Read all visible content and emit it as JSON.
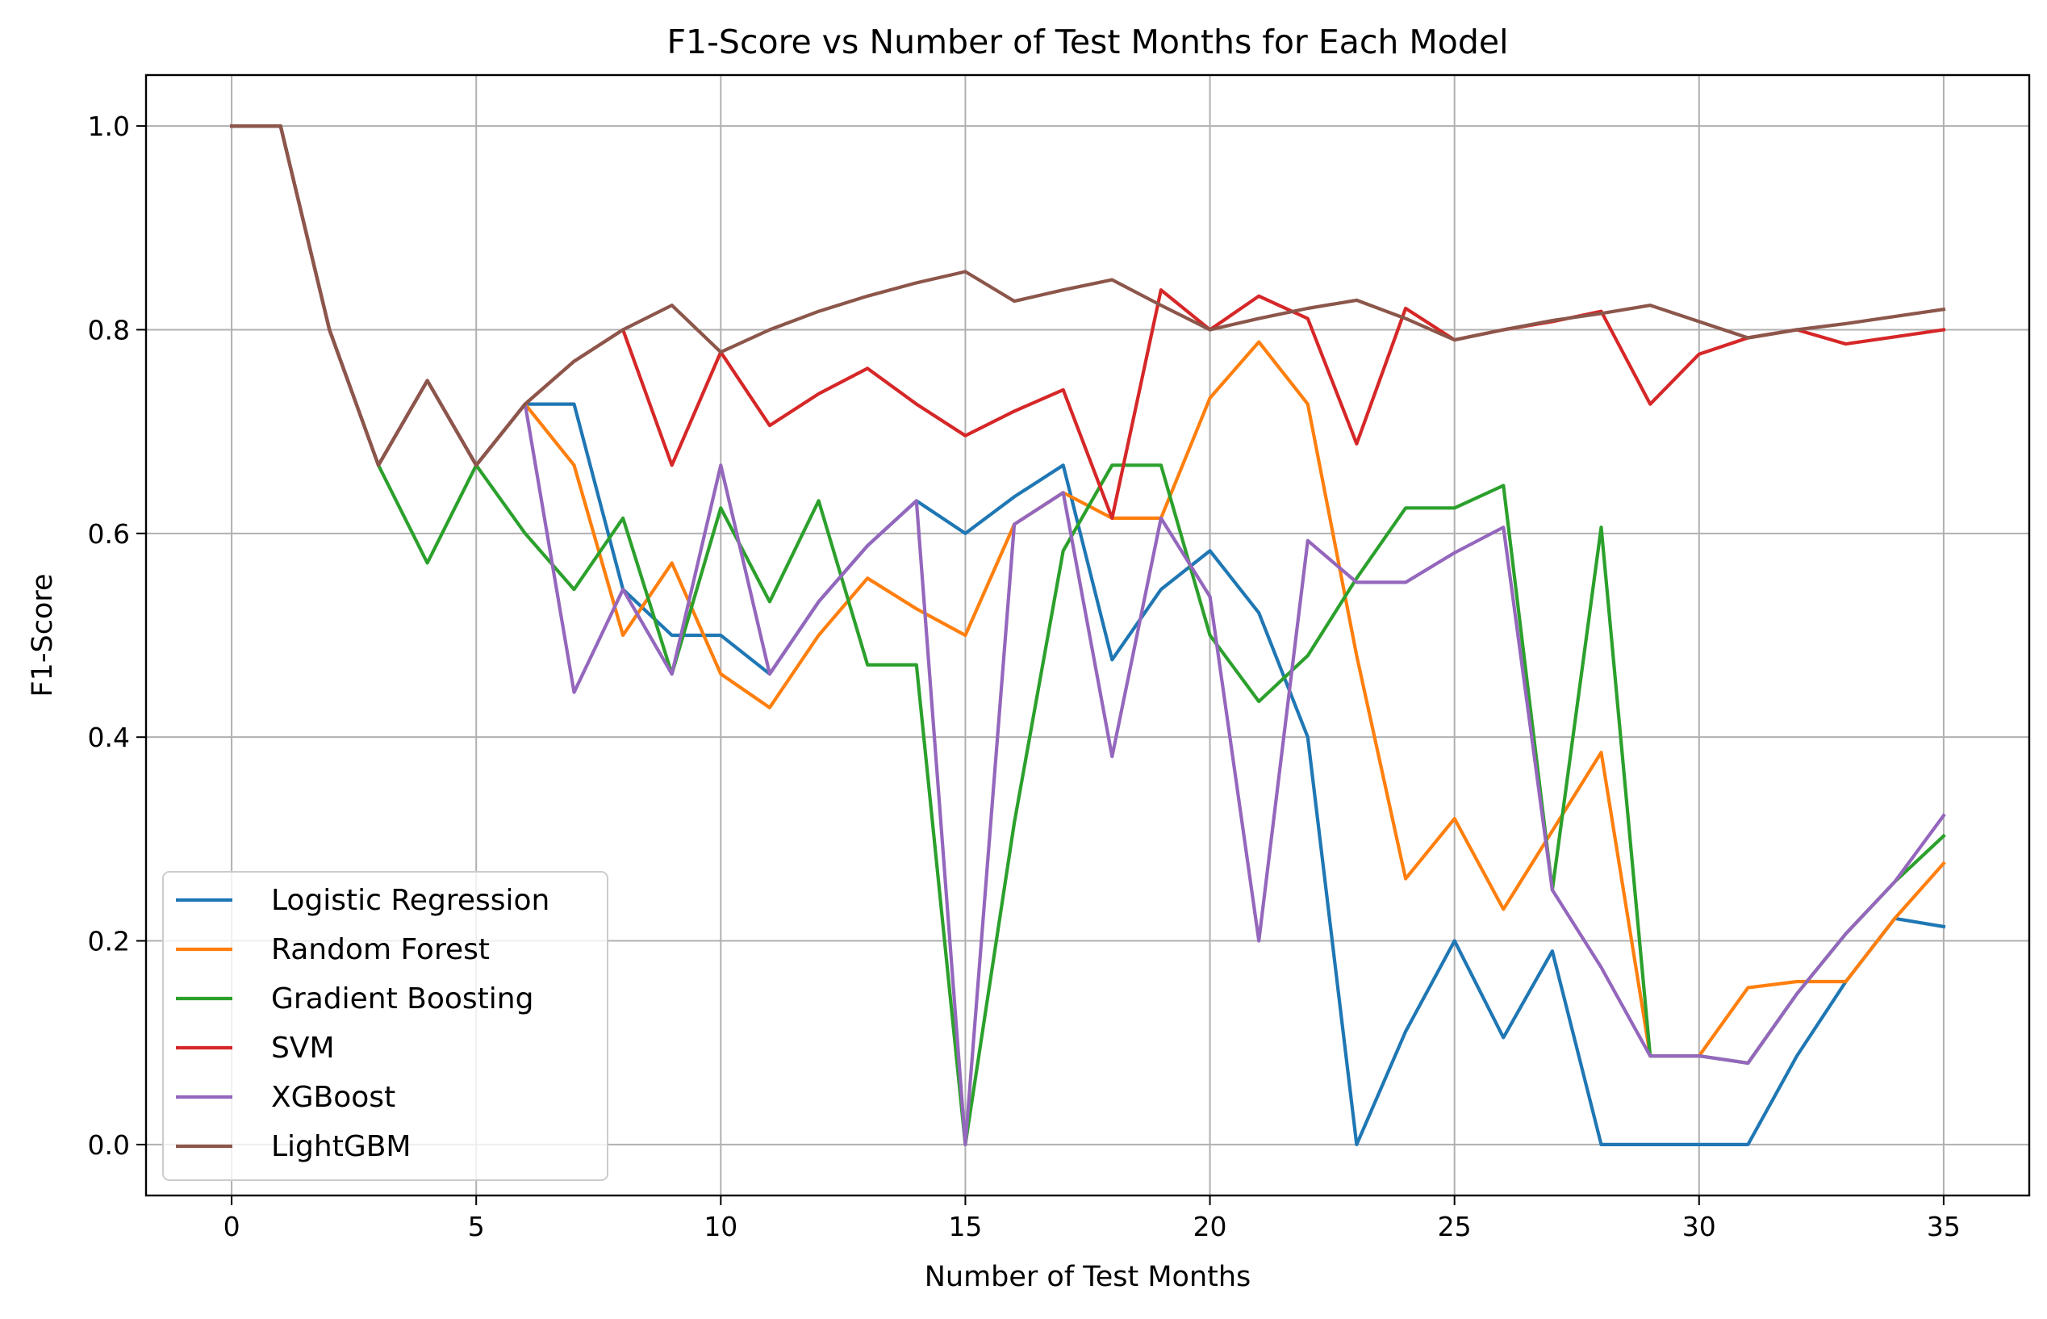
{
  "chart_data": {
    "type": "line",
    "title": "F1-Score vs Number of Test Months for Each Model",
    "xlabel": "Number of Test Months",
    "ylabel": "F1-Score",
    "xlim": [
      -1.75,
      36.75
    ],
    "ylim": [
      -0.05,
      1.05
    ],
    "xticks": [
      0,
      5,
      10,
      15,
      20,
      25,
      30,
      35
    ],
    "xtick_labels": [
      "0",
      "5",
      "10",
      "15",
      "20",
      "25",
      "30",
      "35"
    ],
    "yticks": [
      0.0,
      0.2,
      0.4,
      0.6,
      0.8,
      1.0
    ],
    "ytick_labels": [
      "0.0",
      "0.2",
      "0.4",
      "0.6",
      "0.8",
      "1.0"
    ],
    "grid": true,
    "legend_position": "lower-left",
    "x": [
      0,
      1,
      2,
      3,
      4,
      5,
      6,
      7,
      8,
      9,
      10,
      11,
      12,
      13,
      14,
      15,
      16,
      17,
      18,
      19,
      20,
      21,
      22,
      23,
      24,
      25,
      26,
      27,
      28,
      29,
      30,
      31,
      32,
      33,
      34,
      35
    ],
    "series": [
      {
        "name": "Logistic Regression",
        "color": "#1f77b4",
        "values": [
          1.0,
          1.0,
          0.8,
          0.667,
          0.75,
          0.667,
          0.727,
          0.727,
          0.545,
          0.5,
          0.5,
          0.462,
          0.533,
          0.588,
          0.632,
          0.6,
          0.636,
          0.667,
          0.476,
          0.545,
          0.583,
          0.522,
          0.4,
          0.0,
          0.111,
          0.2,
          0.105,
          0.19,
          0.0,
          0.0,
          0.0,
          0.0,
          0.087,
          0.16,
          0.222,
          0.214
        ]
      },
      {
        "name": "Random Forest",
        "color": "#ff7f0e",
        "values": [
          1.0,
          1.0,
          0.8,
          0.667,
          0.75,
          0.667,
          0.727,
          0.667,
          0.5,
          0.571,
          0.462,
          0.429,
          0.5,
          0.556,
          0.526,
          0.5,
          0.609,
          0.64,
          0.615,
          0.615,
          0.733,
          0.788,
          0.727,
          0.48,
          0.261,
          0.32,
          0.231,
          0.308,
          0.385,
          0.087,
          0.087,
          0.154,
          0.16,
          0.16,
          0.222,
          0.276
        ]
      },
      {
        "name": "Gradient Boosting",
        "color": "#2ca02c",
        "values": [
          1.0,
          1.0,
          0.8,
          0.667,
          0.571,
          0.667,
          0.6,
          0.545,
          0.615,
          0.462,
          0.625,
          0.533,
          0.632,
          0.471,
          0.471,
          0.0,
          0.316,
          0.583,
          0.667,
          0.667,
          0.5,
          0.435,
          0.48,
          0.556,
          0.625,
          0.625,
          0.647,
          0.25,
          0.606,
          0.087,
          0.087,
          0.08,
          0.148,
          0.207,
          0.258,
          0.303
        ]
      },
      {
        "name": "SVM",
        "color": "#d62728",
        "values": [
          1.0,
          1.0,
          0.8,
          0.667,
          0.75,
          0.667,
          0.727,
          0.769,
          0.8,
          0.667,
          0.778,
          0.706,
          0.737,
          0.762,
          0.727,
          0.696,
          0.72,
          0.741,
          0.615,
          0.839,
          0.8,
          0.833,
          0.811,
          0.688,
          0.821,
          0.79,
          0.8,
          0.808,
          0.818,
          0.727,
          0.776,
          0.792,
          0.8,
          0.786,
          0.793,
          0.8
        ]
      },
      {
        "name": "XGBoost",
        "color": "#9467bd",
        "values": [
          1.0,
          1.0,
          0.8,
          0.667,
          0.75,
          0.667,
          0.727,
          0.444,
          0.545,
          0.462,
          0.667,
          0.462,
          0.533,
          0.588,
          0.632,
          0.0,
          0.609,
          0.64,
          0.381,
          0.615,
          0.538,
          0.2,
          0.593,
          0.552,
          0.552,
          0.581,
          0.606,
          0.25,
          0.174,
          0.087,
          0.087,
          0.08,
          0.148,
          0.207,
          0.258,
          0.323
        ]
      },
      {
        "name": "LightGBM",
        "color": "#8c564b",
        "values": [
          1.0,
          1.0,
          0.8,
          0.667,
          0.75,
          0.667,
          0.727,
          0.769,
          0.8,
          0.824,
          0.778,
          0.8,
          0.818,
          0.833,
          0.846,
          0.857,
          0.828,
          0.839,
          0.849,
          0.824,
          0.8,
          0.811,
          0.821,
          0.829,
          0.811,
          0.79,
          0.8,
          0.809,
          0.816,
          0.824,
          0.808,
          0.792,
          0.8,
          0.806,
          0.813,
          0.82
        ]
      }
    ]
  }
}
